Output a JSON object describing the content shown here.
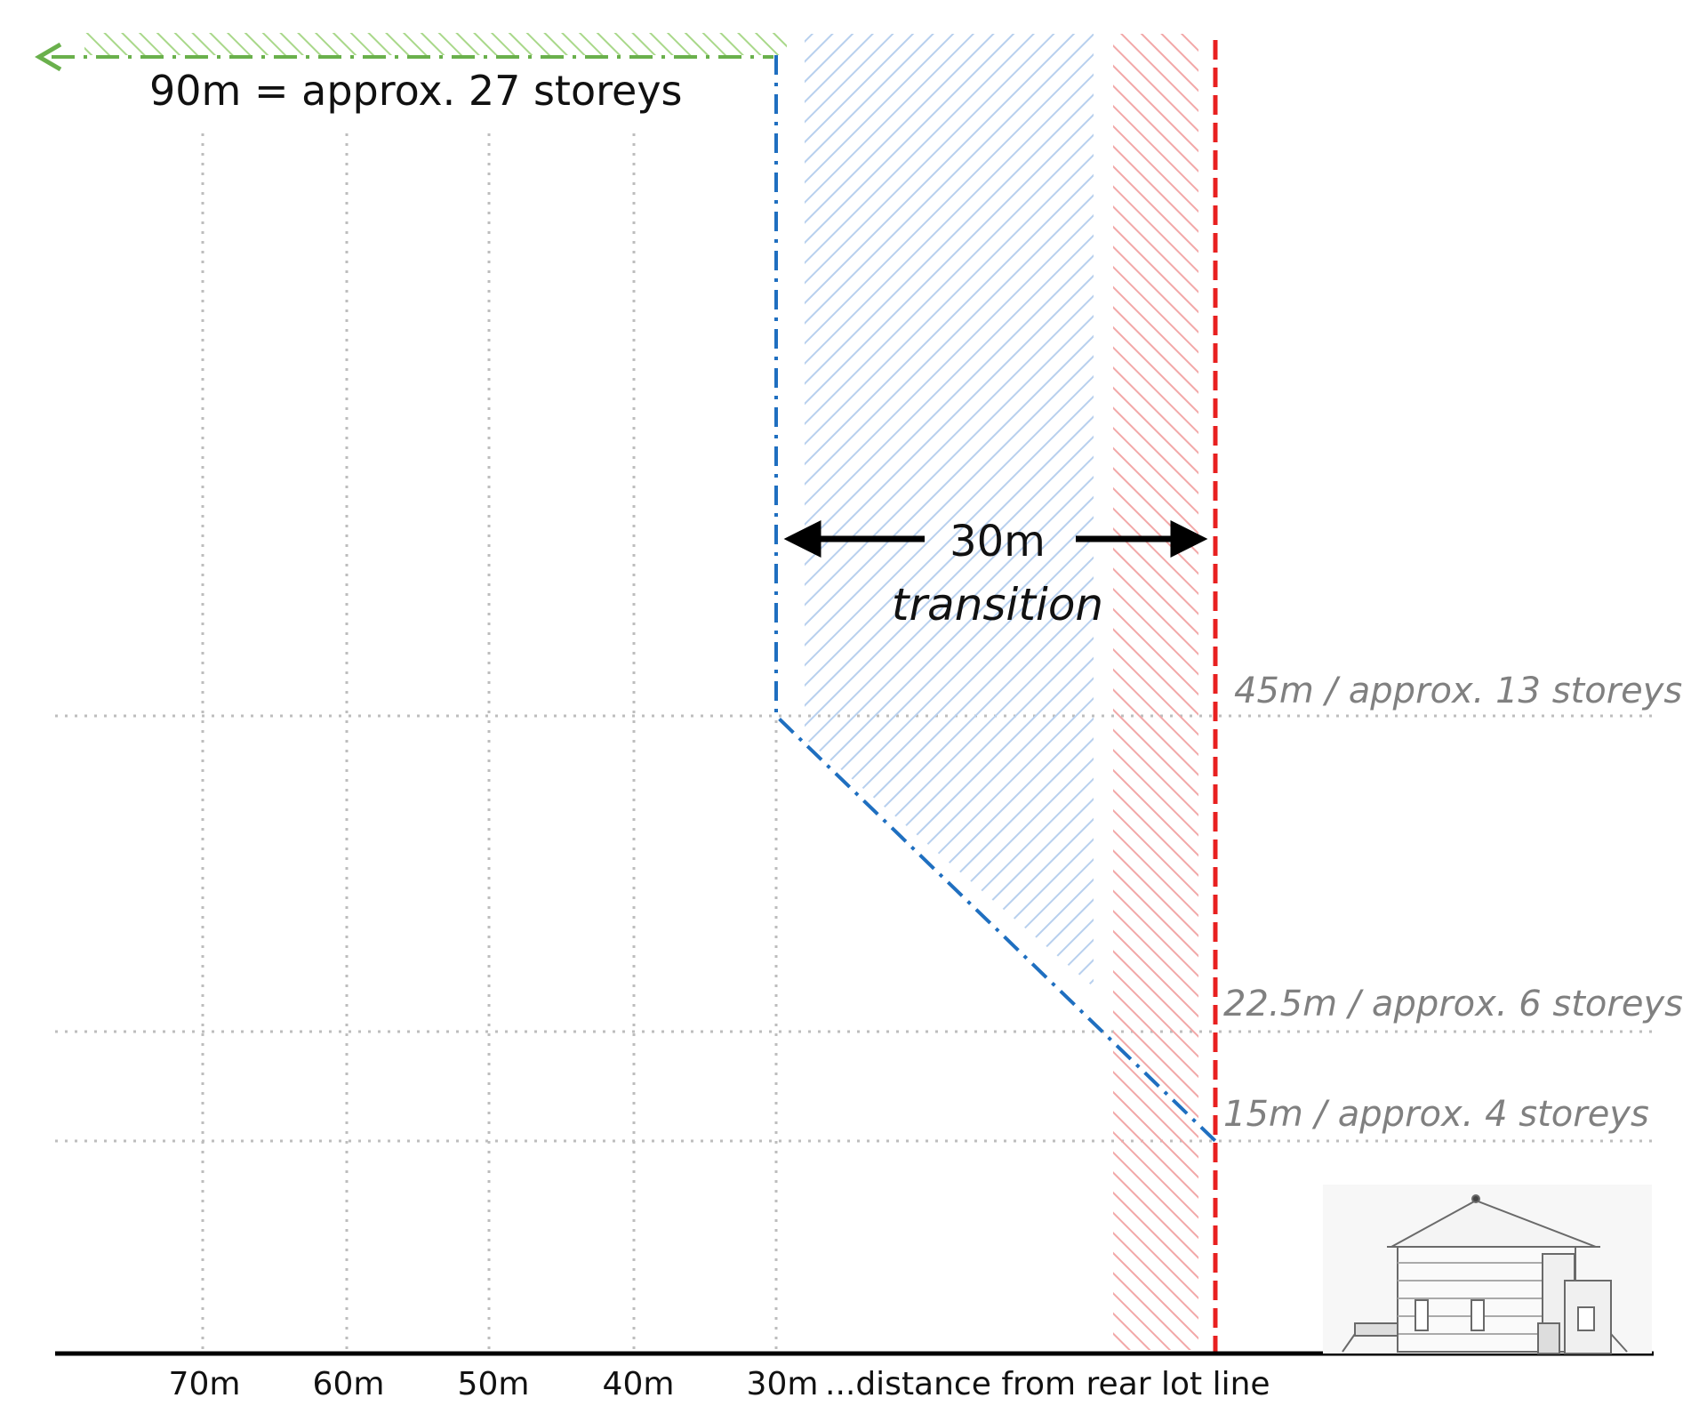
{
  "diagram": {
    "top_label": "90m = approx. 27 storeys",
    "transition_distance": "30m",
    "transition_word": "transition",
    "height_labels": [
      "45m / approx. 13 storeys",
      "22.5m / approx. 6 storeys",
      "15m / approx. 4 storeys"
    ],
    "axis_ticks": [
      "70m",
      "60m",
      "50m",
      "40m",
      "30m"
    ],
    "axis_caption": "...distance from rear lot line",
    "colors": {
      "green": "#6ab04c",
      "blue": "#1f6fc0",
      "red": "#e82020",
      "blue_hatch": "#b8d0ee",
      "red_hatch": "#f2a8a8",
      "green_hatch": "#a9d88a",
      "grid": "#b8b8b8",
      "grey_text": "#808080"
    }
  }
}
